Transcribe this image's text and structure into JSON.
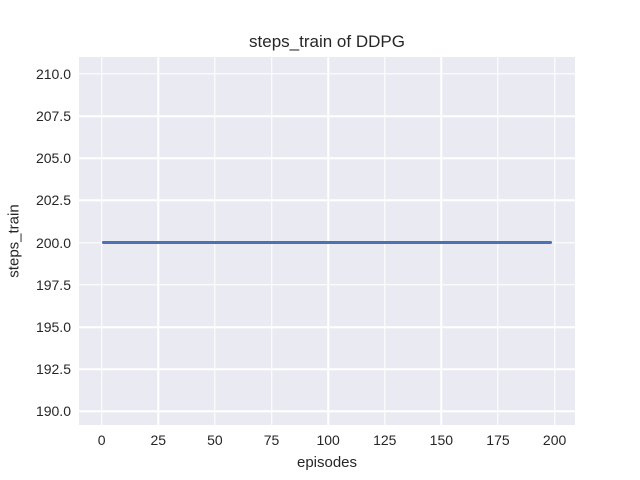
{
  "chart_data": {
    "type": "line",
    "title": "steps_train of DDPG",
    "xlabel": "episodes",
    "ylabel": "steps_train",
    "x_ticks": [
      0,
      25,
      50,
      75,
      100,
      125,
      150,
      175,
      200
    ],
    "y_ticks": [
      190.0,
      192.5,
      195.0,
      197.5,
      200.0,
      202.5,
      205.0,
      207.5,
      210.0
    ],
    "y_tick_decimals": 1,
    "xlim": [
      -10,
      209
    ],
    "ylim": [
      189.2,
      211.0
    ],
    "grid": true,
    "legend_visible": false,
    "series": [
      {
        "name": "steps_train",
        "color": "#4c72b0",
        "x": [
          0,
          199
        ],
        "y": [
          200,
          200
        ],
        "note": "constant value 200 for every episode 0-199"
      }
    ]
  },
  "style": {
    "figure_background": "#ffffff",
    "axes_background": "#eaeaf2",
    "grid_color": "#ffffff",
    "text_color": "#262626",
    "line_color": "#4c72b0"
  }
}
